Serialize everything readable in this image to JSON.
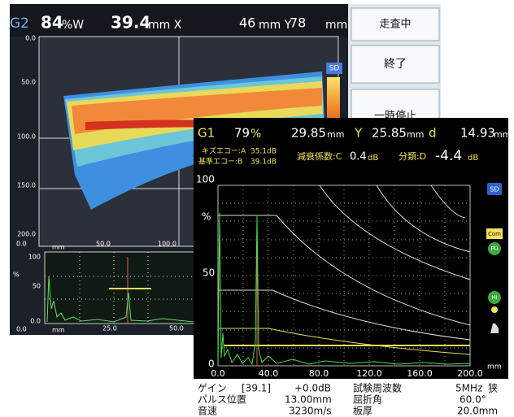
{
  "back_screen": {
    "status": {
      "gate": "G2",
      "amplitude": "84",
      "amplitude_unit": "%W",
      "x": "39.4",
      "x_unit": "mm X",
      "y": "46",
      "y_unit": "mm Y",
      "d": "78",
      "d_unit": "mm"
    },
    "menu": [
      "走査中",
      "終了",
      "一時停止"
    ],
    "sd_icon": "SD",
    "bscan_y_labels": [
      "0.0",
      "50.0",
      "100.0",
      "150.0",
      "200.0"
    ],
    "bscan_x_labels": [
      "0.0",
      "mm",
      "50.0",
      "100.0"
    ],
    "ascan_y_labels": [
      "100",
      "%",
      "50",
      "0.0"
    ],
    "ascan_x_labels": [
      "0.0",
      "mm",
      "25.0",
      "50.0"
    ]
  },
  "front_screen": {
    "status": {
      "gate": "G1",
      "amplitude": "79",
      "amplitude_unit": "%",
      "sound_path": "29.85",
      "sound_path_unit": "mm",
      "y_label": "Y",
      "y": "25.85",
      "y_unit": "mm",
      "d_label": "d",
      "d": "14.93",
      "d_unit": "mm"
    },
    "echo": {
      "flaw_label": "キズエコー:A",
      "flaw": "35.1dB",
      "ref_label": "基準エコー:B",
      "ref": "39.1dB",
      "atten_label": "減衰係数:C",
      "atten": "0.4",
      "atten_unit": "dB",
      "class_label": "分類:D",
      "class": "-4.4",
      "class_unit": "dB"
    },
    "y_labels": [
      "100",
      "%",
      "50",
      "0"
    ],
    "x_labels": [
      "0.0",
      "40.0",
      "80.0",
      "120.0",
      "160.0",
      "200.0"
    ],
    "x_unit": "mm",
    "icons": [
      "SD",
      "Com",
      "PU",
      "Hi"
    ],
    "settings": [
      [
        "ゲイン",
        "[39.1]",
        "+0.0dB",
        "試験周波数",
        "5MHz",
        "狭"
      ],
      [
        "パルス位置",
        "13.00mm",
        "屈折角",
        "60.0°"
      ],
      [
        "音速",
        "3230m/s",
        "板厚",
        "20.0mm"
      ]
    ]
  }
}
